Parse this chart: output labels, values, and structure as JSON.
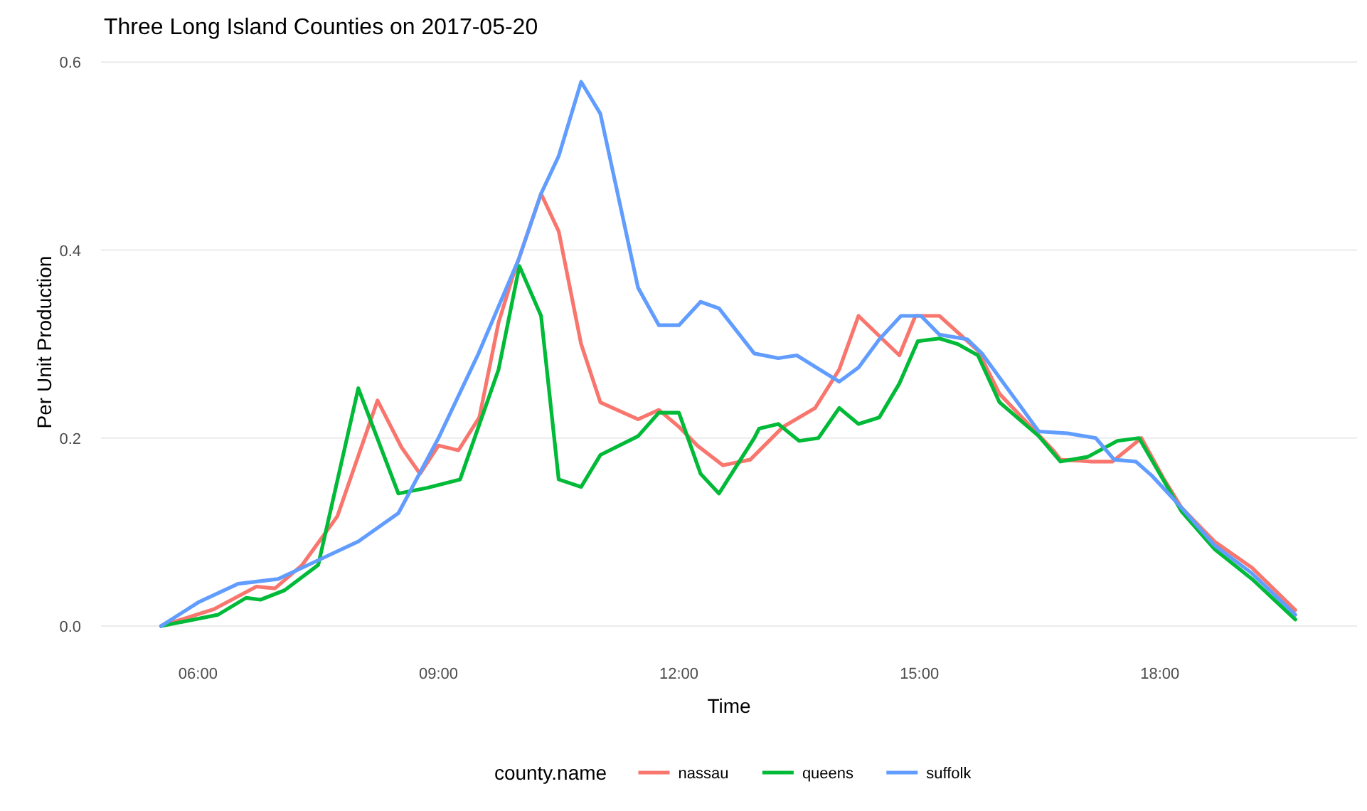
{
  "chart_data": {
    "type": "line",
    "title": "Three Long Island Counties on  2017-05-20",
    "xlabel": "Time",
    "ylabel": "Per Unit Production",
    "legend_title": "county.name",
    "legend": "bottom",
    "grid": "y",
    "line_style": "solid",
    "xlim": [
      4.79,
      20.46
    ],
    "ylim": [
      0,
      0.604
    ],
    "xticks": [
      {
        "value": 6,
        "label": "06:00"
      },
      {
        "value": 9,
        "label": "09:00"
      },
      {
        "value": 12,
        "label": "12:00"
      },
      {
        "value": 15,
        "label": "15:00"
      },
      {
        "value": 18,
        "label": "18:00"
      }
    ],
    "yticks": [
      {
        "value": 0,
        "label": "0.0"
      },
      {
        "value": 0.2,
        "label": "0.2"
      },
      {
        "value": 0.4,
        "label": "0.4"
      },
      {
        "value": 0.6,
        "label": "0.6"
      }
    ],
    "series": [
      {
        "name": "nassau",
        "color": "#f8766d",
        "x": [
          5.54,
          6.2,
          6.73,
          6.96,
          7.3,
          7.74,
          8.24,
          8.54,
          8.77,
          9.0,
          9.25,
          9.51,
          9.75,
          9.92,
          10.28,
          10.5,
          10.78,
          11.02,
          11.49,
          11.75,
          12.0,
          12.23,
          12.55,
          12.89,
          13.3,
          13.7,
          14.0,
          14.24,
          14.75,
          14.95,
          15.25,
          15.73,
          16.0,
          16.67,
          16.76,
          17.15,
          17.41,
          17.77,
          18.04,
          18.27,
          18.68,
          19.15,
          19.69
        ],
        "values": [
          0,
          0.018,
          0.042,
          0.04,
          0.065,
          0.117,
          0.24,
          0.19,
          0.162,
          0.192,
          0.187,
          0.222,
          0.323,
          0.37,
          0.46,
          0.42,
          0.3,
          0.238,
          0.22,
          0.23,
          0.212,
          0.192,
          0.171,
          0.177,
          0.212,
          0.232,
          0.273,
          0.33,
          0.288,
          0.33,
          0.33,
          0.293,
          0.247,
          0.187,
          0.177,
          0.175,
          0.175,
          0.2,
          0.158,
          0.126,
          0.09,
          0.062,
          0.017
        ]
      },
      {
        "name": "queens",
        "color": "#00ba38",
        "x": [
          5.54,
          6.25,
          6.6,
          6.78,
          7.08,
          7.5,
          8.0,
          8.5,
          8.86,
          9.27,
          9.75,
          10.01,
          10.28,
          10.5,
          10.78,
          11.02,
          11.49,
          11.75,
          12.0,
          12.27,
          12.5,
          12.94,
          13.0,
          13.24,
          13.5,
          13.74,
          14.0,
          14.24,
          14.5,
          14.75,
          14.98,
          15.25,
          15.48,
          15.73,
          16.0,
          16.49,
          16.76,
          17.1,
          17.47,
          17.74,
          18.04,
          18.27,
          18.68,
          19.15,
          19.69
        ],
        "values": [
          0,
          0.012,
          0.03,
          0.028,
          0.038,
          0.065,
          0.253,
          0.141,
          0.147,
          0.156,
          0.273,
          0.383,
          0.33,
          0.156,
          0.148,
          0.182,
          0.202,
          0.227,
          0.227,
          0.162,
          0.141,
          0.2,
          0.21,
          0.215,
          0.197,
          0.2,
          0.232,
          0.215,
          0.222,
          0.258,
          0.303,
          0.306,
          0.3,
          0.288,
          0.238,
          0.202,
          0.175,
          0.18,
          0.197,
          0.2,
          0.156,
          0.122,
          0.082,
          0.05,
          0.007
        ]
      },
      {
        "name": "suffolk",
        "color": "#619cff",
        "x": [
          5.54,
          6.0,
          6.5,
          7.0,
          7.5,
          8.0,
          8.5,
          9.0,
          9.5,
          10.0,
          10.28,
          10.5,
          10.78,
          11.02,
          11.49,
          11.75,
          12.0,
          12.27,
          12.5,
          12.94,
          13.24,
          13.47,
          14.0,
          14.24,
          14.5,
          14.77,
          15.02,
          15.25,
          15.6,
          15.78,
          16.49,
          16.85,
          17.2,
          17.43,
          17.7,
          17.9,
          18.27,
          18.68,
          19.15,
          19.69
        ],
        "values": [
          0,
          0.025,
          0.045,
          0.05,
          0.07,
          0.09,
          0.12,
          0.2,
          0.29,
          0.39,
          0.46,
          0.5,
          0.579,
          0.545,
          0.36,
          0.32,
          0.32,
          0.345,
          0.338,
          0.29,
          0.285,
          0.288,
          0.26,
          0.275,
          0.305,
          0.33,
          0.33,
          0.31,
          0.305,
          0.29,
          0.207,
          0.205,
          0.2,
          0.177,
          0.175,
          0.16,
          0.126,
          0.086,
          0.056,
          0.012
        ]
      }
    ]
  }
}
